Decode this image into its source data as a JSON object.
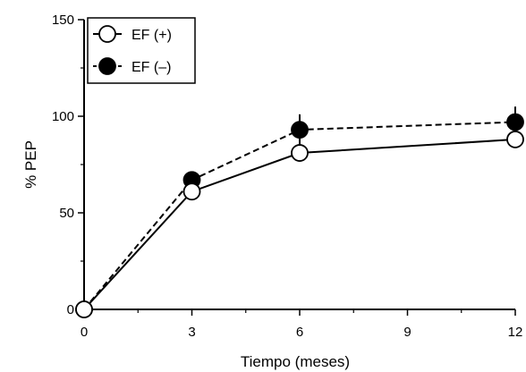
{
  "chart_data": {
    "type": "line",
    "title": "",
    "xlabel": "Tiempo (meses)",
    "ylabel": "% PEP",
    "x": [
      0,
      3,
      6,
      9,
      12
    ],
    "x_ticks": [
      "0",
      "3",
      "6",
      "9",
      "12"
    ],
    "y_ticks": [
      "0",
      "50",
      "100",
      "150"
    ],
    "xlim": [
      0,
      12
    ],
    "ylim": [
      0,
      150
    ],
    "grid": false,
    "legend_position": "top-left",
    "series": [
      {
        "name": "EF (+)",
        "x": [
          0,
          3,
          6,
          12
        ],
        "values": [
          0,
          61,
          81,
          88
        ],
        "error": [
          0,
          3,
          4,
          4
        ],
        "marker": "open-circle",
        "line": "solid",
        "color": "#000000"
      },
      {
        "name": "EF (–)",
        "x": [
          0,
          3,
          6,
          12
        ],
        "values": [
          0,
          67,
          93,
          97
        ],
        "error": [
          0,
          3,
          8,
          8
        ],
        "marker": "filled-circle",
        "line": "dashed",
        "color": "#000000"
      }
    ]
  }
}
